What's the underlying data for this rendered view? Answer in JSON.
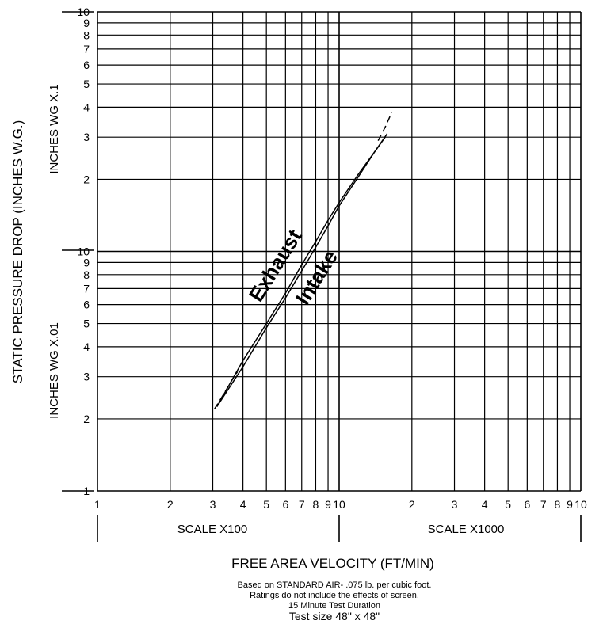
{
  "chart_data": {
    "type": "line",
    "scale": "log-log",
    "ylabel": "STATIC PRESSURE DROP (INCHES W.G.)",
    "xlabel": "FREE AREA VELOCITY (FT/MIN)",
    "y_section_labels": [
      "INCHES WG X.1",
      "INCHES WG X.01"
    ],
    "x_section_labels": [
      "SCALE X100",
      "SCALE X1000"
    ],
    "x_tick_labels": [
      "1",
      "2",
      "3",
      "4",
      "5",
      "6",
      "7",
      "8",
      "9",
      "10",
      "2",
      "3",
      "4",
      "5",
      "6",
      "7",
      "8",
      "9",
      "10"
    ],
    "y_tick_labels_upper": [
      "2",
      "3",
      "4",
      "5",
      "6",
      "7",
      "8",
      "9",
      "10"
    ],
    "y_tick_labels_lower": [
      "1",
      "2",
      "3",
      "4",
      "5",
      "6",
      "7",
      "8",
      "9",
      "10"
    ],
    "xlim": [
      100,
      10000
    ],
    "ylim": [
      0.01,
      1.0
    ],
    "grid": true,
    "series": [
      {
        "name": "Exhaust",
        "style": "solid",
        "x": [
          312,
          400,
          500,
          600,
          700,
          800,
          900,
          1000,
          1200,
          1400,
          1550
        ],
        "y": [
          0.0225,
          0.035,
          0.05,
          0.067,
          0.088,
          0.11,
          0.135,
          0.16,
          0.21,
          0.26,
          0.3
        ]
      },
      {
        "name": "Intake",
        "style": "solid",
        "x": [
          312,
          400,
          500,
          600,
          700,
          800,
          900,
          1000,
          1200,
          1400,
          1580
        ],
        "y": [
          0.0225,
          0.033,
          0.048,
          0.064,
          0.083,
          0.104,
          0.128,
          0.155,
          0.205,
          0.26,
          0.31
        ]
      },
      {
        "name": "",
        "style": "dashed",
        "x": [
          305,
          330,
          360,
          380
        ],
        "y": [
          0.022,
          0.025,
          0.029,
          0.0315
        ]
      },
      {
        "name": "",
        "style": "dashed",
        "x": [
          1450,
          1550,
          1650
        ],
        "y": [
          0.29,
          0.33,
          0.38
        ]
      }
    ],
    "notes": [
      "Based on STANDARD AIR-  .075 lb. per cubic foot.",
      "Ratings do not include the effects of screen.",
      "15 Minute Test Duration",
      "Test size 48\" x 48\""
    ]
  }
}
